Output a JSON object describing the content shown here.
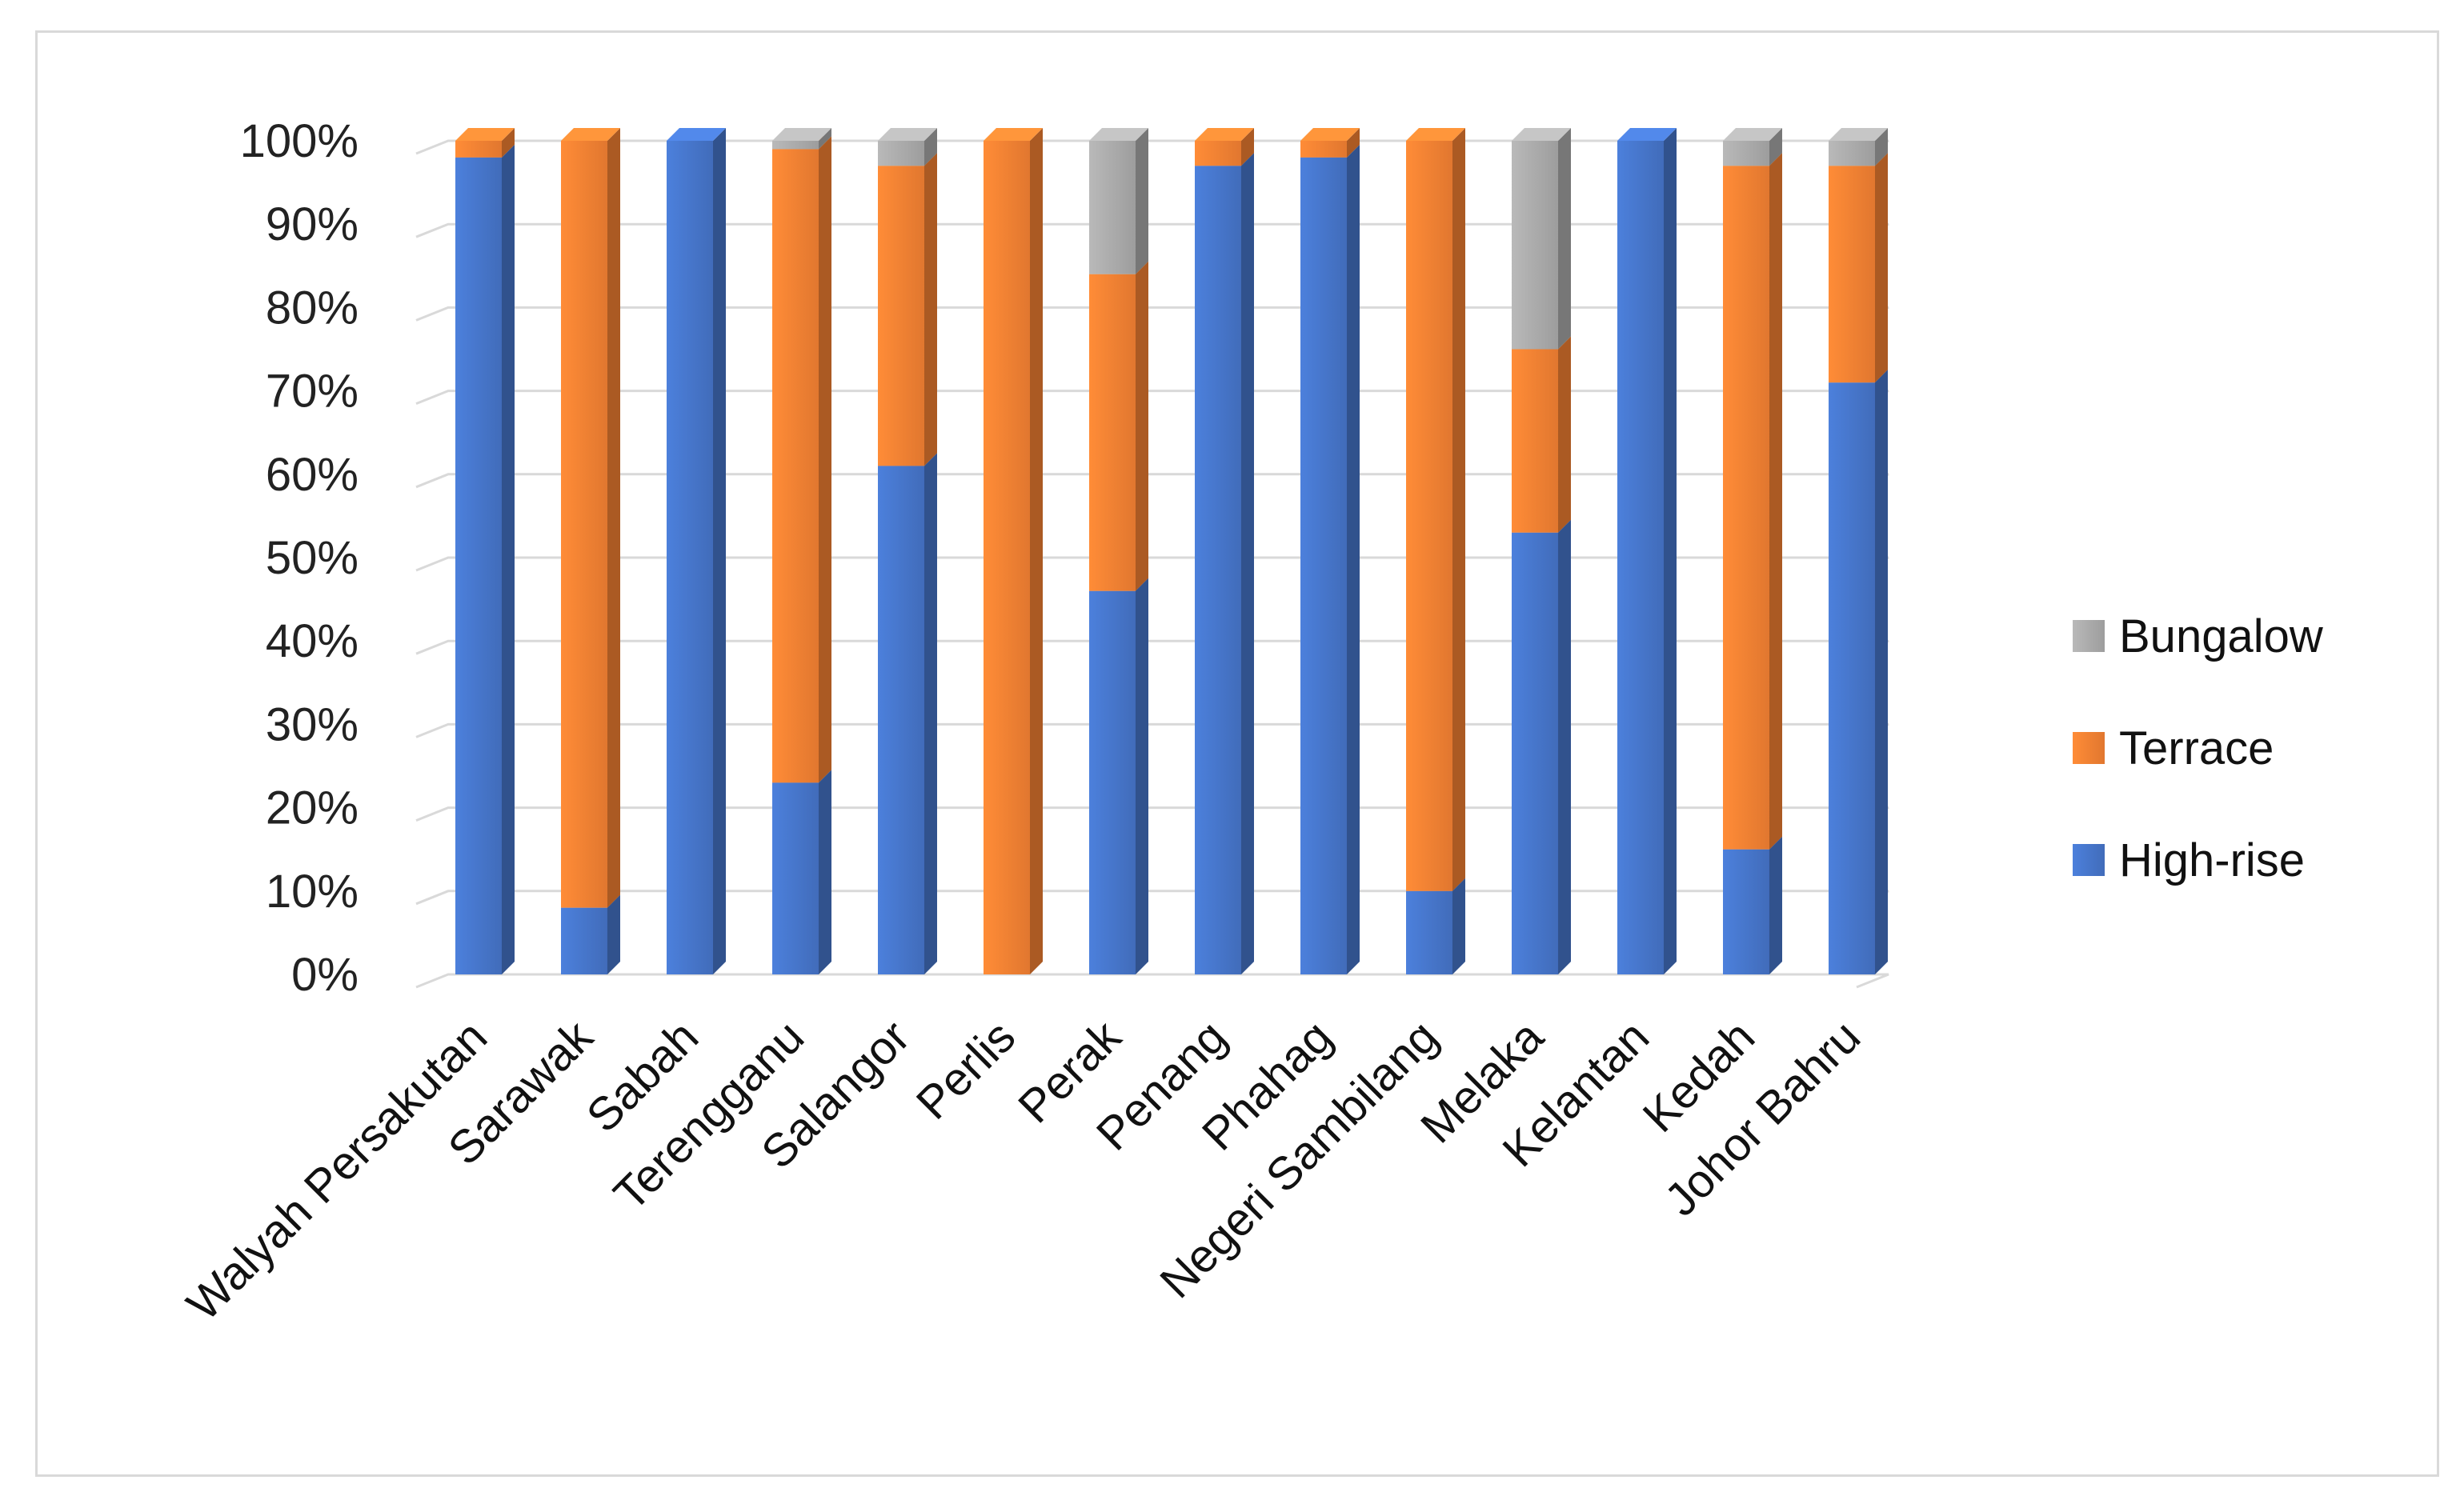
{
  "chart_data": {
    "type": "bar",
    "stacked": true,
    "percent_stacked": true,
    "three_d": true,
    "categories": [
      "Walyah Persakutan",
      "Sarawak",
      "Sabah",
      "Terengganu",
      "Salangor",
      "Perlis",
      "Perak",
      "Penang",
      "Phahag",
      "Negeri  Sambilang",
      "Melaka",
      "Kelantan",
      "Kedah",
      "Johor Bahru"
    ],
    "series": [
      {
        "name": "High-rise",
        "color": "#4472c4",
        "values": [
          98,
          8,
          100,
          23,
          61,
          0,
          46,
          97,
          98,
          10,
          53,
          100,
          15,
          71
        ]
      },
      {
        "name": "Terrace",
        "color": "#ed7d31",
        "values": [
          2,
          92,
          0,
          76,
          36,
          100,
          38,
          3,
          2,
          90,
          22,
          0,
          82,
          26
        ]
      },
      {
        "name": "Bungalow",
        "color": "#a5a5a5",
        "values": [
          0,
          0,
          0,
          1,
          3,
          0,
          16,
          0,
          0,
          0,
          25,
          0,
          3,
          3
        ]
      }
    ],
    "ylim": [
      0,
      100
    ],
    "y_ticks": [
      "0%",
      "10%",
      "20%",
      "30%",
      "40%",
      "50%",
      "60%",
      "70%",
      "80%",
      "90%",
      "100%"
    ],
    "grid": true,
    "legend_position": "right",
    "legend_order": [
      "Bungalow",
      "Terrace",
      "High-rise"
    ]
  }
}
